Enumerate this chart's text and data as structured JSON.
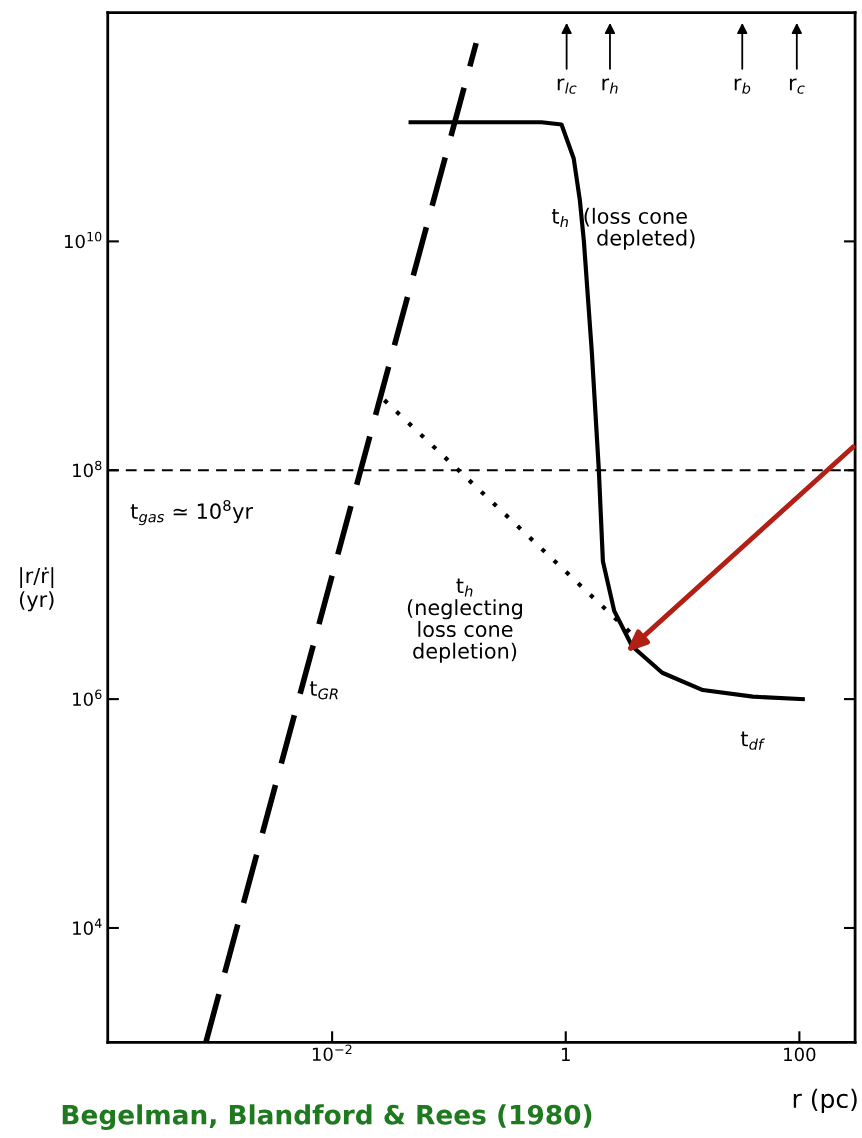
{
  "chart_data": {
    "type": "line",
    "xlabel": "r (pc)",
    "ylabel": "|r/ṙ|\n(yr)",
    "log": "xy",
    "xlim": [
      0.00012,
      300
    ],
    "ylim": [
      1000,
      1000000000000.0
    ],
    "xticks": [
      {
        "value": 0.01,
        "label": "10$^{−2}$"
      },
      1,
      100
    ],
    "yticks": [
      {
        "value": 10000,
        "label": "10$^{4}$"
      },
      {
        "value": 1000000,
        "label": "10$^{6}$"
      },
      {
        "value": 100000000,
        "label": "10$^{8}$"
      },
      {
        "value": 10000000000,
        "label": "10$^{10}$"
      }
    ],
    "grid": false,
    "legend": false,
    "marker": "none",
    "series": [
      {
        "color": "#000000",
        "line_style": "dashed",
        "x": [
          0.00083,
          0.171
        ],
        "values": [
          1000,
          540000000000.0
        ]
      },
      {
        "color": "#000000",
        "line_style": "solid",
        "x": [
          0.047,
          0.62,
          0.92,
          1.17,
          1.32,
          1.43,
          1.67,
          1.92,
          2.08,
          2.6,
          3.7,
          6.7,
          14.9,
          40,
          107
        ],
        "values": [
          110000000000.0,
          110000000000.0,
          105000000000.0,
          53000000000.0,
          23000000000.0,
          10000000000.0,
          1100000000.0,
          100000000.0,
          16000000.0,
          5900000.0,
          2900000.0,
          1700000.0,
          1200000.0,
          1050000.0,
          1000000.0
        ]
      },
      {
        "color": "#000000",
        "line_style": "dotted",
        "x": [
          0.028,
          3.9
        ],
        "values": [
          410000000.0,
          3500000.0
        ]
      }
    ],
    "ref_lines": [
      {
        "axis": "y",
        "value": 100000000,
        "label": "t$_{gas}$ ≃ 10$^{8}$yr",
        "line_style": "dashed",
        "color": "#000000"
      }
    ],
    "annotations": [
      "t$_{h}$  (loss cone\n        depleted)",
      "t$_{h}$\n(neglecting\nloss cone\ndepletion)",
      "t$_{GR}$",
      "t$_{df}$",
      "r$_{lc}$",
      "r$_{h}$",
      "r$_{b}$",
      "r$_{c}$",
      "Begelman, Blandford & Rees (1980)"
    ]
  }
}
